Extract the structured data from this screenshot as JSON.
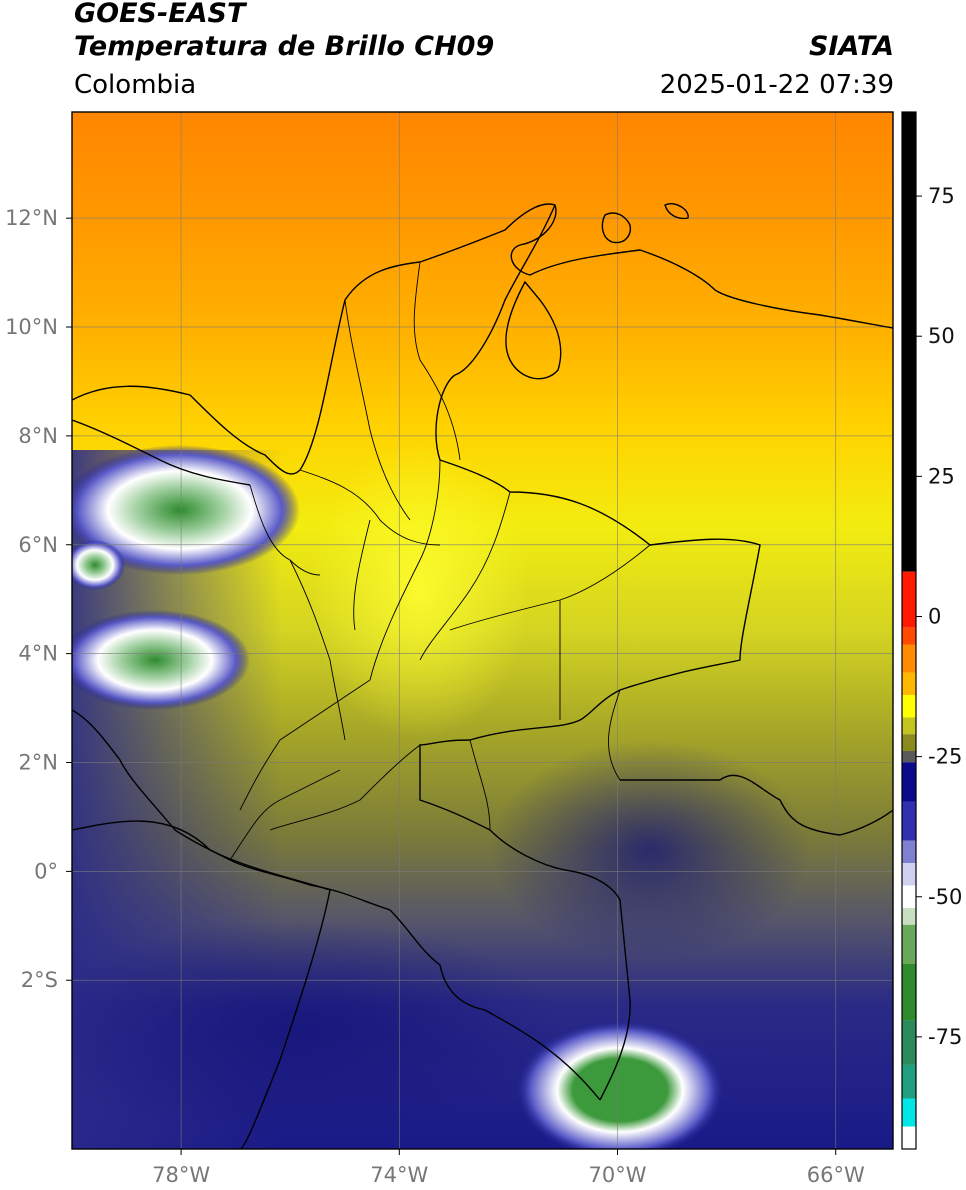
{
  "header": {
    "satellite": "GOES-EAST",
    "product": "Temperatura de Brillo CH09",
    "agency": "SIATA",
    "region": "Colombia",
    "datetime": "2025-01-22 07:39"
  },
  "map": {
    "lon_range": [
      -80,
      -64.95
    ],
    "lat_range": [
      -5.1,
      13.95
    ],
    "lat_ticks": [
      {
        "value": 12,
        "label": "12°N"
      },
      {
        "value": 10,
        "label": "10°N"
      },
      {
        "value": 8,
        "label": "8°N"
      },
      {
        "value": 6,
        "label": "6°N"
      },
      {
        "value": 4,
        "label": "4°N"
      },
      {
        "value": 2,
        "label": "2°N"
      },
      {
        "value": 0,
        "label": "0°"
      },
      {
        "value": -2,
        "label": "2°S"
      }
    ],
    "lon_ticks": [
      {
        "value": -78,
        "label": "78°W"
      },
      {
        "value": -74,
        "label": "74°W"
      },
      {
        "value": -70,
        "label": "70°W"
      },
      {
        "value": -66,
        "label": "66°W"
      }
    ],
    "grid": true
  },
  "colorbar": {
    "range": [
      -95,
      90
    ],
    "ticks": [
      {
        "value": 75,
        "label": "75"
      },
      {
        "value": 50,
        "label": "50"
      },
      {
        "value": 25,
        "label": "25"
      },
      {
        "value": 0,
        "label": "0"
      },
      {
        "value": -25,
        "label": "-25"
      },
      {
        "value": -50,
        "label": "-50"
      },
      {
        "value": -75,
        "label": "-75"
      }
    ],
    "colors": {
      "black": "#000000",
      "red": "#ff1a00",
      "orange": "#ff8c00",
      "yellow": "#ffff00",
      "olive": "#8a8a1e",
      "gray": "#5a5a5a",
      "navy": "#0a0a8c",
      "blue": "#3030b0",
      "white": "#ffffff",
      "green": "#2e8b2e",
      "teal": "#20a080",
      "cyan": "#00e5e5"
    }
  }
}
